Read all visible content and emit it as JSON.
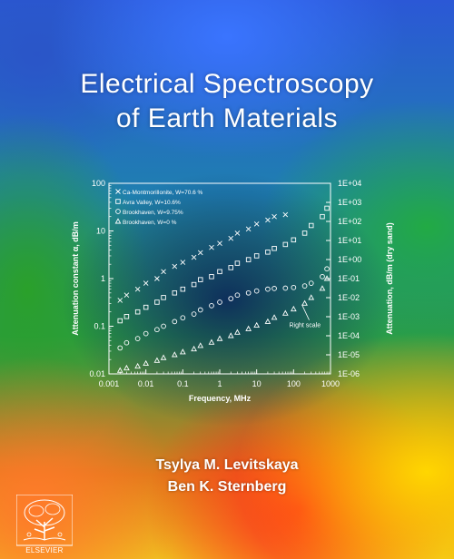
{
  "cover": {
    "title_line1": "Electrical Spectroscopy",
    "title_line2": "of Earth Materials",
    "author1": "Tsylya M. Levitskaya",
    "author2": "Ben K. Sternberg",
    "publisher": "ELSEVIER"
  },
  "colors": {
    "axis": "#ffffff",
    "title_text": "#ffffff"
  },
  "chart_data": {
    "type": "scatter",
    "title": "",
    "xlabel": "Frequency, MHz",
    "ylabel": "Attenuation constant α, dB/m",
    "y2label": "Attenuation, dB/m (dry sand)",
    "xscale": "log",
    "yscale": "log",
    "y2scale": "log",
    "xlim": [
      0.001,
      1000
    ],
    "ylim": [
      0.01,
      100
    ],
    "y2lim": [
      1e-06,
      10000.0
    ],
    "x_ticks": [
      "0.001",
      "0.01",
      "0.1",
      "1",
      "10",
      "100",
      "1000"
    ],
    "y_ticks": [
      "0.01",
      "0.1",
      "1",
      "10",
      "100"
    ],
    "y2_ticks": [
      "1E-06",
      "1E-05",
      "1E-04",
      "1E-03",
      "1E-02",
      "1E-01",
      "1E+00",
      "1E+01",
      "1E+02",
      "1E+03",
      "1E+04"
    ],
    "grid": false,
    "legend_position": "top-left",
    "annotation": "Right scale",
    "series": [
      {
        "name": "Ca-Montmorillonite, W=70.6 %",
        "marker": "x",
        "axis": "left",
        "x": [
          0.002,
          0.003,
          0.006,
          0.01,
          0.02,
          0.03,
          0.06,
          0.1,
          0.2,
          0.3,
          0.6,
          1,
          2,
          3,
          6,
          10,
          20,
          30,
          60
        ],
        "y": [
          0.35,
          0.45,
          0.6,
          0.8,
          1.0,
          1.4,
          1.8,
          2.2,
          2.8,
          3.5,
          4.5,
          5.5,
          7.0,
          9.0,
          11.0,
          14.0,
          17.0,
          20.0,
          22.0
        ]
      },
      {
        "name": "Avra Valley, W=10.6%",
        "marker": "square",
        "axis": "left",
        "x": [
          0.002,
          0.003,
          0.006,
          0.01,
          0.02,
          0.03,
          0.06,
          0.1,
          0.2,
          0.3,
          0.6,
          1,
          2,
          3,
          6,
          10,
          20,
          30,
          60,
          100,
          200,
          300,
          600,
          800
        ],
        "y": [
          0.13,
          0.16,
          0.2,
          0.25,
          0.32,
          0.4,
          0.5,
          0.6,
          0.75,
          0.95,
          1.1,
          1.4,
          1.7,
          2.1,
          2.5,
          3.0,
          3.6,
          4.3,
          5.2,
          6.5,
          9.0,
          13.0,
          20.0,
          30.0
        ]
      },
      {
        "name": "Brookhaven, W=9.75%",
        "marker": "circle",
        "axis": "left",
        "x": [
          0.002,
          0.003,
          0.006,
          0.01,
          0.02,
          0.03,
          0.06,
          0.1,
          0.2,
          0.3,
          0.6,
          1,
          2,
          3,
          6,
          10,
          20,
          30,
          60,
          100,
          200,
          300,
          600,
          800
        ],
        "y": [
          0.035,
          0.045,
          0.055,
          0.07,
          0.085,
          0.1,
          0.125,
          0.15,
          0.18,
          0.22,
          0.27,
          0.32,
          0.38,
          0.45,
          0.5,
          0.55,
          0.6,
          0.62,
          0.63,
          0.65,
          0.7,
          0.8,
          1.1,
          1.6
        ]
      },
      {
        "name": "Brookhaven, W=0 %",
        "marker": "triangle",
        "axis": "right",
        "x": [
          0.002,
          0.003,
          0.006,
          0.01,
          0.02,
          0.03,
          0.06,
          0.1,
          0.2,
          0.3,
          0.6,
          1,
          2,
          3,
          6,
          10,
          20,
          30,
          60,
          100,
          200,
          300,
          600,
          800
        ],
        "y": [
          1.5e-06,
          2e-06,
          2.5e-06,
          3.5e-06,
          5e-06,
          7e-06,
          1e-05,
          1.4e-05,
          2e-05,
          3e-05,
          4.5e-05,
          7e-05,
          0.0001,
          0.00015,
          0.00023,
          0.00035,
          0.00055,
          0.0009,
          0.0015,
          0.0025,
          0.005,
          0.01,
          0.03,
          0.1
        ]
      }
    ]
  }
}
